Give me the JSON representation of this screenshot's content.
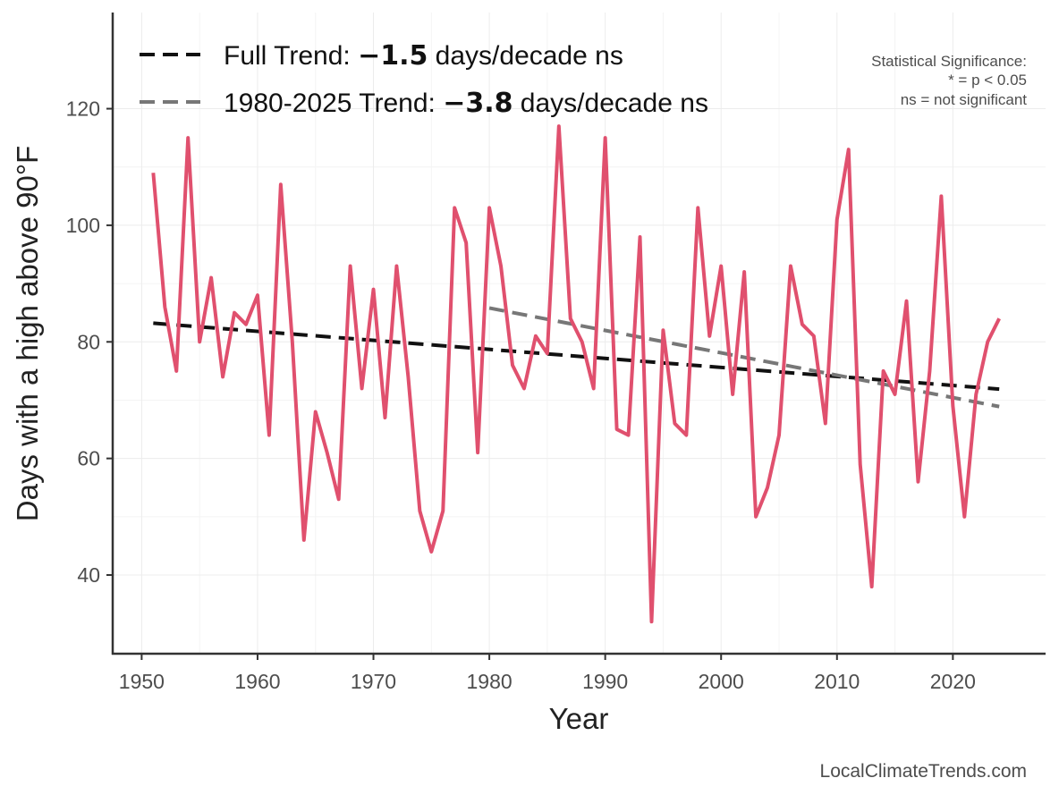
{
  "chart_data": {
    "type": "line",
    "xlabel": "Year",
    "ylabel": "Days with a high above 90°F",
    "xlim": [
      1947.5,
      2028
    ],
    "ylim": [
      26.5,
      136.5
    ],
    "x_ticks": [
      1950,
      1960,
      1970,
      1980,
      1990,
      2000,
      2010,
      2020
    ],
    "y_ticks": [
      40,
      60,
      80,
      100,
      120
    ],
    "grid": true,
    "legend_position": "top-left",
    "series": [
      {
        "name": "Days above 90°F",
        "color": "#e0506e",
        "x": [
          1951,
          1952,
          1953,
          1954,
          1955,
          1956,
          1957,
          1958,
          1959,
          1960,
          1961,
          1962,
          1963,
          1964,
          1965,
          1966,
          1967,
          1968,
          1969,
          1970,
          1971,
          1972,
          1973,
          1974,
          1975,
          1976,
          1977,
          1978,
          1979,
          1980,
          1981,
          1982,
          1983,
          1984,
          1985,
          1986,
          1987,
          1988,
          1989,
          1990,
          1991,
          1992,
          1993,
          1994,
          1995,
          1996,
          1997,
          1998,
          1999,
          2000,
          2001,
          2002,
          2003,
          2004,
          2005,
          2006,
          2007,
          2008,
          2009,
          2010,
          2011,
          2012,
          2013,
          2014,
          2015,
          2016,
          2017,
          2018,
          2019,
          2020,
          2021,
          2022,
          2023,
          2024
        ],
        "values": [
          109,
          86,
          75,
          115,
          80,
          91,
          74,
          85,
          83,
          88,
          64,
          107,
          80,
          46,
          68,
          61,
          53,
          93,
          72,
          89,
          67,
          93,
          74,
          51,
          44,
          51,
          103,
          97,
          61,
          103,
          93,
          76,
          72,
          81,
          78,
          117,
          84,
          80,
          72,
          115,
          65,
          64,
          98,
          32,
          82,
          66,
          64,
          103,
          81,
          93,
          71,
          92,
          50,
          55,
          64,
          93,
          83,
          81,
          66,
          101,
          113,
          59,
          38,
          75,
          71,
          87,
          56,
          75,
          105,
          69,
          50,
          71,
          80,
          84
        ]
      }
    ],
    "trends": [
      {
        "label_prefix": "Full Trend: ",
        "value_label": "−1.5",
        "label_suffix": " days/decade ns",
        "color": "#111111",
        "x": [
          1951,
          2024
        ],
        "y": [
          83.2,
          71.9
        ]
      },
      {
        "label_prefix": "1980-2025 Trend: ",
        "value_label": "−3.8",
        "label_suffix": " days/decade ns",
        "color": "#777777",
        "x": [
          1980,
          2024
        ],
        "y": [
          85.8,
          68.9
        ]
      }
    ],
    "significance_note": {
      "title": "Statistical Significance:",
      "line1": "* = p < 0.05",
      "line2": "ns = not significant"
    },
    "credit": "LocalClimateTrends.com"
  }
}
